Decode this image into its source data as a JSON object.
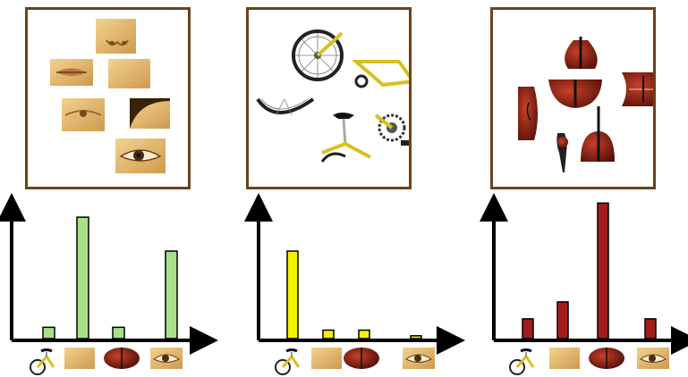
{
  "panels": [
    {
      "name": "face",
      "patches": [
        "nose",
        "lips",
        "skin",
        "cheek-eye",
        "hair-edge",
        "eye"
      ]
    },
    {
      "name": "bicycle",
      "patches": [
        "rear-wheel",
        "frame-top",
        "wheel-arc",
        "saddle-seatpost",
        "chainring-pedal"
      ]
    },
    {
      "name": "violin",
      "patches": [
        "scroll-neck",
        "upper-body",
        "side-body",
        "lower-body",
        "waist",
        "neck-fingerboard",
        "body-bottom"
      ]
    }
  ],
  "colors": {
    "frame": "#6b4319",
    "face": "#a8e08a",
    "bicycle": "#f5f000",
    "violin": "#a31c1c",
    "axis": "#000000"
  },
  "chart_data": [
    {
      "type": "bar",
      "categories": [
        "bicycle",
        "face",
        "violin",
        "eye"
      ],
      "values": [
        0.08,
        0.86,
        0.08,
        0.62
      ],
      "ylim": [
        0,
        1
      ]
    },
    {
      "type": "bar",
      "categories": [
        "bicycle",
        "face",
        "violin",
        "eye"
      ],
      "values": [
        0.62,
        0.06,
        0.06,
        0.02
      ],
      "ylim": [
        0,
        1
      ]
    },
    {
      "type": "bar",
      "categories": [
        "bicycle",
        "face",
        "violin",
        "eye"
      ],
      "values": [
        0.14,
        0.26,
        0.96,
        0.14
      ],
      "ylim": [
        0,
        1
      ]
    }
  ]
}
